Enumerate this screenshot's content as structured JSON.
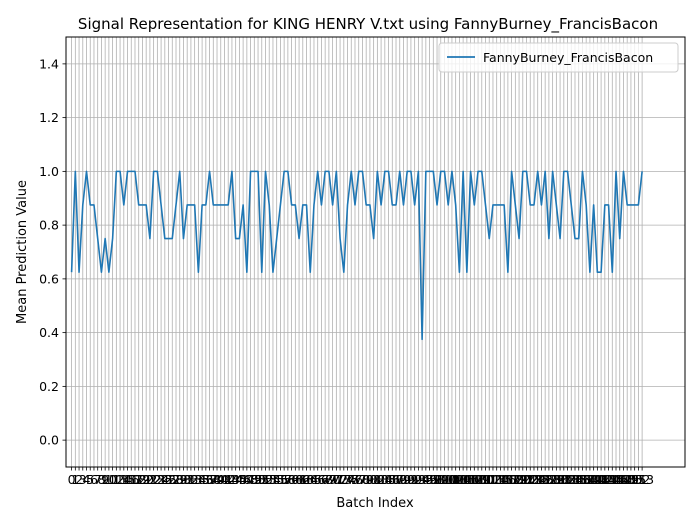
{
  "chart_data": {
    "type": "line",
    "title": "Signal Representation for KING HENRY V.txt using FannyBurney_FrancisBacon",
    "xlabel": "Batch Index",
    "ylabel": "Mean Prediction Value",
    "ylim": [
      -0.1,
      1.5
    ],
    "yticks": [
      "0.0",
      "0.2",
      "0.4",
      "0.6",
      "0.8",
      "1.0",
      "1.2",
      "1.4"
    ],
    "xlim": [
      -1.5,
      164.5
    ],
    "grid": true,
    "legend_position": "top-right",
    "series": [
      {
        "name": "FannyBurney_FrancisBacon",
        "color": "#1f77b4",
        "values": [
          0.625,
          1.0,
          0.625,
          0.875,
          1.0,
          0.875,
          0.875,
          0.75,
          0.625,
          0.75,
          0.625,
          0.75,
          1.0,
          1.0,
          0.875,
          1.0,
          1.0,
          1.0,
          0.875,
          0.875,
          0.875,
          0.75,
          1.0,
          1.0,
          0.875,
          0.75,
          0.75,
          0.75,
          0.875,
          1.0,
          0.75,
          0.875,
          0.875,
          0.875,
          0.625,
          0.875,
          0.875,
          1.0,
          0.875,
          0.875,
          0.875,
          0.875,
          0.875,
          1.0,
          0.75,
          0.75,
          0.875,
          0.625,
          1.0,
          1.0,
          1.0,
          0.625,
          1.0,
          0.875,
          0.625,
          0.75,
          0.875,
          1.0,
          1.0,
          0.875,
          0.875,
          0.75,
          0.875,
          0.875,
          0.625,
          0.875,
          1.0,
          0.875,
          1.0,
          1.0,
          0.875,
          1.0,
          0.75,
          0.625,
          0.875,
          1.0,
          0.875,
          1.0,
          1.0,
          0.875,
          0.875,
          0.75,
          1.0,
          0.875,
          1.0,
          1.0,
          0.875,
          0.875,
          1.0,
          0.875,
          1.0,
          1.0,
          0.875,
          1.0,
          0.375,
          1.0,
          1.0,
          1.0,
          0.875,
          1.0,
          1.0,
          0.875,
          1.0,
          0.875,
          0.625,
          1.0,
          0.625,
          1.0,
          0.875,
          1.0,
          1.0,
          0.875,
          0.75,
          0.875,
          0.875,
          0.875,
          0.875,
          0.625,
          1.0,
          0.875,
          0.75,
          1.0,
          1.0,
          0.875,
          0.875,
          1.0,
          0.875,
          1.0,
          0.75,
          1.0,
          0.875,
          0.75,
          1.0,
          1.0,
          0.875,
          0.75,
          0.75,
          1.0,
          0.875,
          0.625,
          0.875,
          0.625,
          0.625,
          0.875,
          0.875,
          0.625,
          1.0,
          0.75,
          1.0,
          0.875,
          0.875,
          0.875,
          0.875,
          1.0
        ]
      }
    ]
  }
}
